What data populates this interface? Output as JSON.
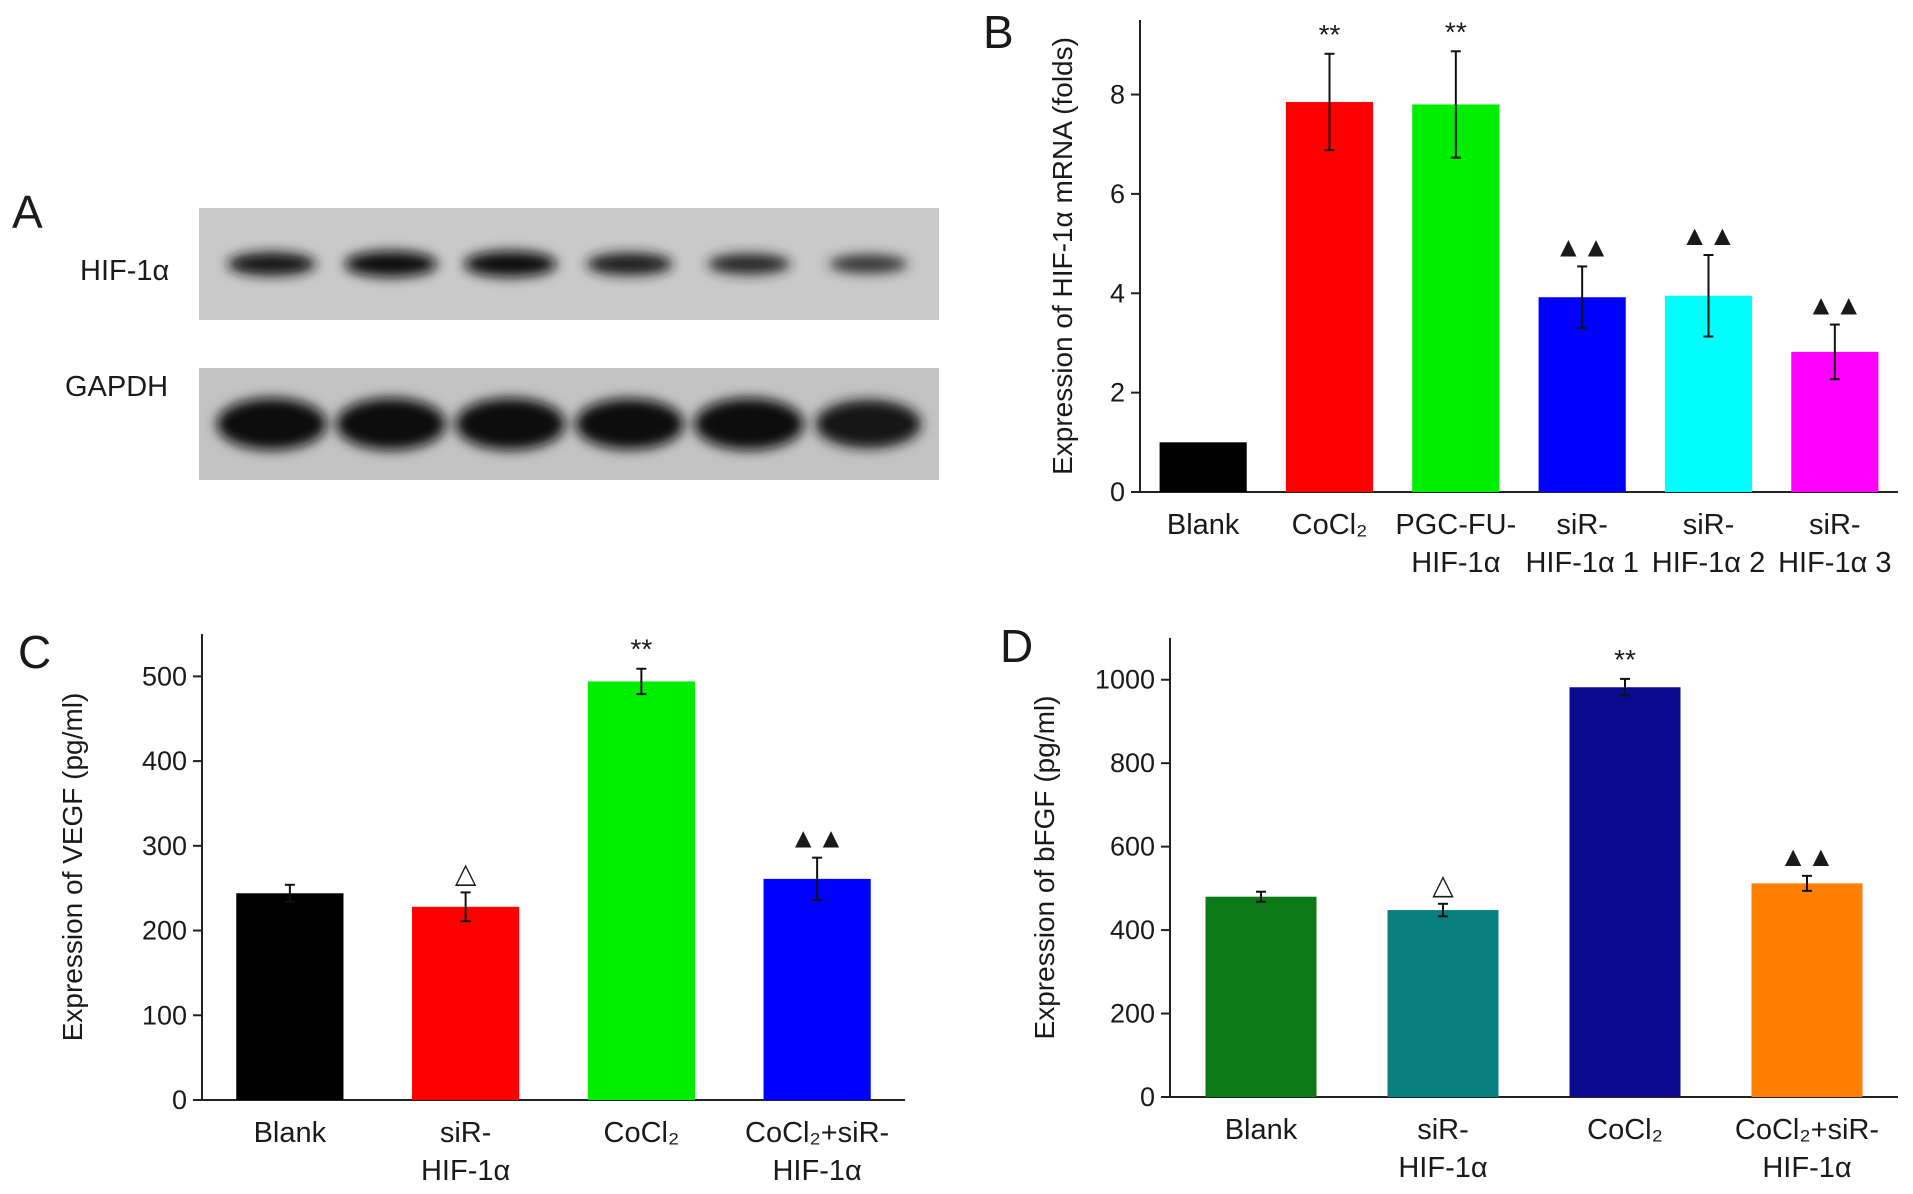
{
  "panels": {
    "a": {
      "letter": "A"
    },
    "b": {
      "letter": "B"
    },
    "c": {
      "letter": "C"
    },
    "d": {
      "letter": "D"
    }
  },
  "western_blot": {
    "rows": [
      {
        "label": "HIF-1α",
        "band_intensity": [
          0.8,
          1.0,
          1.0,
          0.7,
          0.55,
          0.35
        ]
      },
      {
        "label": "GAPDH",
        "band_intensity": [
          1.0,
          1.0,
          1.0,
          0.95,
          1.0,
          0.85
        ]
      }
    ],
    "lane_count": 6
  },
  "chart_data": [
    {
      "panel": "B",
      "type": "bar",
      "categories": [
        [
          "Blank"
        ],
        [
          "CoCl₂"
        ],
        [
          "PGC-FU-",
          "HIF-1α"
        ],
        [
          "siR-",
          "HIF-1α 1"
        ],
        [
          "siR-",
          "HIF-1α 2"
        ],
        [
          "siR-",
          "HIF-1α 3"
        ]
      ],
      "values": [
        1.0,
        7.85,
        7.8,
        3.92,
        3.95,
        2.82
      ],
      "errors": [
        0,
        0.97,
        1.07,
        0.62,
        0.82,
        0.55
      ],
      "colors": [
        "#000000",
        "#ff0000",
        "#00ee00",
        "#0000ff",
        "#00ffff",
        "#ff00ff"
      ],
      "markers": [
        "",
        "**",
        "**",
        "▲▲",
        "▲▲",
        "▲▲"
      ],
      "title": "",
      "xlabel": "",
      "ylabel": "Expression of HIF-1α mRNA (folds)",
      "ylim": [
        0,
        9.5
      ],
      "yticks": [
        0,
        2,
        4,
        6,
        8
      ],
      "grid": false
    },
    {
      "panel": "C",
      "type": "bar",
      "categories": [
        [
          "Blank"
        ],
        [
          "siR-",
          "HIF-1α"
        ],
        [
          "CoCl₂"
        ],
        [
          "CoCl₂+siR-",
          "HIF-1α"
        ]
      ],
      "values": [
        244,
        228,
        494,
        261
      ],
      "errors": [
        10,
        17,
        15,
        25
      ],
      "colors": [
        "#000000",
        "#ff0000",
        "#00ee00",
        "#0000ff"
      ],
      "markers": [
        "",
        "△",
        "**",
        "▲▲"
      ],
      "title": "",
      "xlabel": "",
      "ylabel": "Expression of VEGF (pg/ml)",
      "ylim": [
        0,
        550
      ],
      "yticks": [
        0,
        100,
        200,
        300,
        400,
        500
      ],
      "grid": false
    },
    {
      "panel": "D",
      "type": "bar",
      "categories": [
        [
          "Blank"
        ],
        [
          "siR-",
          "HIF-1α"
        ],
        [
          "CoCl₂"
        ],
        [
          "CoCl₂+siR-",
          "HIF-1α"
        ]
      ],
      "values": [
        480,
        448,
        982,
        512
      ],
      "errors": [
        12,
        15,
        20,
        18
      ],
      "colors": [
        "#0b7a16",
        "#0a7f7f",
        "#0a0a8f",
        "#ff8000"
      ],
      "markers": [
        "",
        "△",
        "**",
        "▲▲"
      ],
      "title": "",
      "xlabel": "",
      "ylabel": "Expression of bFGF (pg/ml)",
      "ylim": [
        0,
        1100
      ],
      "yticks": [
        0,
        200,
        400,
        600,
        800,
        1000
      ],
      "grid": false
    }
  ]
}
